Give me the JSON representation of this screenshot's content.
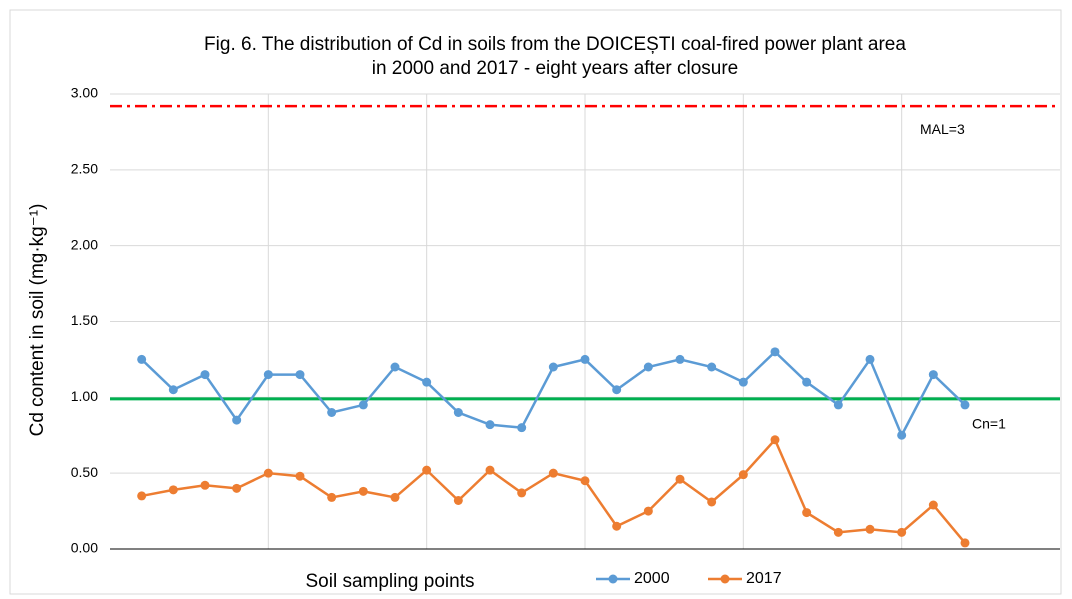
{
  "chart_data": {
    "type": "line",
    "title": [
      "Fig. 6. The distribution of Cd in soils from the DOICEȘTI  coal-fired power plant area",
      "in 2000 and 2017 - eight years after closure"
    ],
    "x_label": "Soil sampling points",
    "y_label": "Cd content in soil (mg·kg⁻¹)",
    "x": [
      1,
      2,
      3,
      4,
      5,
      6,
      7,
      8,
      9,
      10,
      11,
      12,
      13,
      14,
      15,
      16,
      17,
      18,
      19,
      20,
      21,
      22,
      23,
      24,
      25,
      26,
      27
    ],
    "xlim": [
      0,
      30
    ],
    "xticks": [
      5,
      10,
      15,
      20,
      25
    ],
    "ylim": [
      0,
      3
    ],
    "yticks": [
      {
        "value": 0,
        "label": "0.00"
      },
      {
        "value": 0.5,
        "label": "0.50"
      },
      {
        "value": 1,
        "label": "1.00"
      },
      {
        "value": 1.5,
        "label": "1.50"
      },
      {
        "value": 2,
        "label": "2.00"
      },
      {
        "value": 2.5,
        "label": "2.50"
      },
      {
        "value": 3,
        "label": "3.00"
      }
    ],
    "grid": true,
    "series": [
      {
        "name": "2000",
        "color": "#5b9bd5",
        "values": [
          1.25,
          1.05,
          1.15,
          0.85,
          1.15,
          1.15,
          0.9,
          0.95,
          1.2,
          1.1,
          0.9,
          0.82,
          0.8,
          1.2,
          1.25,
          1.05,
          1.2,
          1.25,
          1.2,
          1.1,
          1.3,
          1.1,
          0.95,
          1.25,
          0.75,
          1.15,
          0.95
        ]
      },
      {
        "name": "2017",
        "color": "#ed7d31",
        "values": [
          0.35,
          0.39,
          0.42,
          0.4,
          0.5,
          0.48,
          0.34,
          0.38,
          0.34,
          0.52,
          0.32,
          0.52,
          0.37,
          0.5,
          0.45,
          0.15,
          0.25,
          0.46,
          0.31,
          0.49,
          0.72,
          0.24,
          0.11,
          0.13,
          0.11,
          0.29,
          0.04
        ]
      }
    ],
    "reference_lines": [
      {
        "label": "MAL=3",
        "value": 2.92,
        "color": "#ff0000",
        "style": "dashdot"
      },
      {
        "label": "Cn=1",
        "value": 0.99,
        "color": "#00b050",
        "style": "solid"
      }
    ]
  }
}
